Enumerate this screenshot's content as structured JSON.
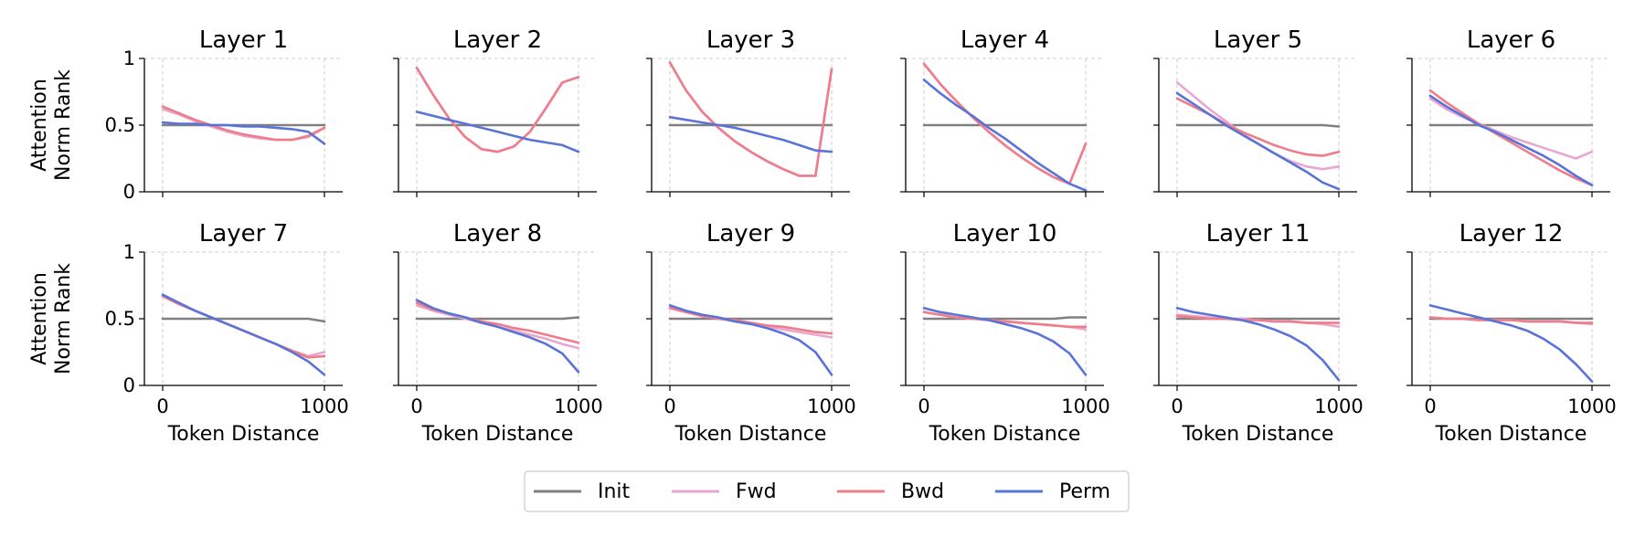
{
  "chart_data": {
    "type": "line",
    "layout": "2 rows x 6 columns of line charts with shared legend at bottom-center",
    "xlabel": "Token Distance",
    "ylabel": "Attention\nNorm Rank",
    "xticks": [
      0,
      1000
    ],
    "yticks": [
      0,
      0.5,
      1
    ],
    "xlim": [
      -50,
      1070
    ],
    "ylim": [
      0,
      1
    ],
    "grid": "dashed light-gray lines at x=0, x=1000 and y=1",
    "legend": {
      "placement": "bottom-center",
      "entries": [
        {
          "name": "Init",
          "color": "#808080"
        },
        {
          "name": "Fwd",
          "color": "#e8a7cf"
        },
        {
          "name": "Bwd",
          "color": "#ef7c8a"
        },
        {
          "name": "Perm",
          "color": "#5a73d8"
        }
      ]
    },
    "x": [
      0,
      100,
      200,
      300,
      400,
      500,
      600,
      700,
      800,
      900,
      1000
    ],
    "panels": [
      {
        "title": "Layer 1",
        "series": [
          {
            "name": "Init",
            "values": [
              0.5,
              0.5,
              0.5,
              0.5,
              0.5,
              0.5,
              0.5,
              0.5,
              0.5,
              0.5,
              0.5
            ]
          },
          {
            "name": "Fwd",
            "values": [
              0.62,
              0.58,
              0.53,
              0.49,
              0.45,
              0.42,
              0.4,
              0.39,
              0.39,
              0.41,
              0.48
            ]
          },
          {
            "name": "Bwd",
            "values": [
              0.64,
              0.59,
              0.54,
              0.5,
              0.46,
              0.43,
              0.41,
              0.39,
              0.39,
              0.42,
              0.48
            ]
          },
          {
            "name": "Perm",
            "values": [
              0.52,
              0.51,
              0.51,
              0.5,
              0.5,
              0.49,
              0.49,
              0.48,
              0.47,
              0.45,
              0.36
            ]
          }
        ]
      },
      {
        "title": "Layer 2",
        "series": [
          {
            "name": "Init",
            "values": [
              0.5,
              0.5,
              0.5,
              0.5,
              0.5,
              0.5,
              0.5,
              0.5,
              0.5,
              0.5,
              0.5
            ]
          },
          {
            "name": "Fwd",
            "values": [
              0.93,
              0.73,
              0.55,
              0.41,
              0.32,
              0.3,
              0.34,
              0.45,
              0.63,
              0.82,
              0.86
            ]
          },
          {
            "name": "Bwd",
            "values": [
              0.93,
              0.73,
              0.55,
              0.41,
              0.32,
              0.3,
              0.34,
              0.45,
              0.63,
              0.82,
              0.86
            ]
          },
          {
            "name": "Perm",
            "values": [
              0.6,
              0.57,
              0.54,
              0.51,
              0.48,
              0.45,
              0.42,
              0.39,
              0.37,
              0.35,
              0.3
            ]
          }
        ]
      },
      {
        "title": "Layer 3",
        "series": [
          {
            "name": "Init",
            "values": [
              0.5,
              0.5,
              0.5,
              0.5,
              0.5,
              0.5,
              0.5,
              0.5,
              0.5,
              0.5,
              0.5
            ]
          },
          {
            "name": "Fwd",
            "values": [
              0.97,
              0.76,
              0.6,
              0.48,
              0.38,
              0.3,
              0.23,
              0.17,
              0.12,
              0.12,
              0.92
            ]
          },
          {
            "name": "Bwd",
            "values": [
              0.97,
              0.76,
              0.6,
              0.48,
              0.38,
              0.3,
              0.23,
              0.17,
              0.12,
              0.12,
              0.92
            ]
          },
          {
            "name": "Perm",
            "values": [
              0.56,
              0.54,
              0.52,
              0.5,
              0.48,
              0.45,
              0.42,
              0.39,
              0.35,
              0.31,
              0.3
            ]
          }
        ]
      },
      {
        "title": "Layer 4",
        "series": [
          {
            "name": "Init",
            "values": [
              0.5,
              0.5,
              0.5,
              0.5,
              0.5,
              0.5,
              0.5,
              0.5,
              0.5,
              0.5,
              0.5
            ]
          },
          {
            "name": "Fwd",
            "values": [
              0.96,
              0.81,
              0.68,
              0.56,
              0.45,
              0.35,
              0.26,
              0.18,
              0.11,
              0.06,
              0.36
            ]
          },
          {
            "name": "Bwd",
            "values": [
              0.96,
              0.81,
              0.68,
              0.56,
              0.45,
              0.35,
              0.26,
              0.18,
              0.11,
              0.06,
              0.36
            ]
          },
          {
            "name": "Perm",
            "values": [
              0.84,
              0.74,
              0.65,
              0.57,
              0.48,
              0.4,
              0.31,
              0.22,
              0.14,
              0.06,
              0.01
            ]
          }
        ]
      },
      {
        "title": "Layer 5",
        "series": [
          {
            "name": "Init",
            "values": [
              0.5,
              0.5,
              0.5,
              0.5,
              0.5,
              0.5,
              0.5,
              0.5,
              0.5,
              0.5,
              0.49
            ]
          },
          {
            "name": "Fwd",
            "values": [
              0.82,
              0.72,
              0.62,
              0.53,
              0.44,
              0.36,
              0.29,
              0.23,
              0.19,
              0.17,
              0.19
            ]
          },
          {
            "name": "Bwd",
            "values": [
              0.7,
              0.64,
              0.58,
              0.51,
              0.45,
              0.4,
              0.35,
              0.31,
              0.28,
              0.27,
              0.3
            ]
          },
          {
            "name": "Perm",
            "values": [
              0.74,
              0.66,
              0.58,
              0.5,
              0.43,
              0.36,
              0.29,
              0.22,
              0.15,
              0.07,
              0.02
            ]
          }
        ]
      },
      {
        "title": "Layer 6",
        "series": [
          {
            "name": "Init",
            "values": [
              0.5,
              0.5,
              0.5,
              0.5,
              0.5,
              0.5,
              0.5,
              0.5,
              0.5,
              0.5,
              0.5
            ]
          },
          {
            "name": "Fwd",
            "values": [
              0.7,
              0.62,
              0.56,
              0.51,
              0.46,
              0.41,
              0.37,
              0.33,
              0.29,
              0.25,
              0.3
            ]
          },
          {
            "name": "Bwd",
            "values": [
              0.76,
              0.67,
              0.59,
              0.51,
              0.44,
              0.37,
              0.3,
              0.23,
              0.16,
              0.1,
              0.05
            ]
          },
          {
            "name": "Perm",
            "values": [
              0.72,
              0.64,
              0.57,
              0.5,
              0.45,
              0.39,
              0.33,
              0.27,
              0.2,
              0.12,
              0.05
            ]
          }
        ]
      },
      {
        "title": "Layer 7",
        "series": [
          {
            "name": "Init",
            "values": [
              0.5,
              0.5,
              0.5,
              0.5,
              0.5,
              0.5,
              0.5,
              0.5,
              0.5,
              0.5,
              0.48
            ]
          },
          {
            "name": "Fwd",
            "values": [
              0.67,
              0.61,
              0.56,
              0.51,
              0.46,
              0.41,
              0.36,
              0.31,
              0.26,
              0.22,
              0.25
            ]
          },
          {
            "name": "Bwd",
            "values": [
              0.67,
              0.61,
              0.56,
              0.51,
              0.46,
              0.41,
              0.36,
              0.31,
              0.26,
              0.21,
              0.22
            ]
          },
          {
            "name": "Perm",
            "values": [
              0.68,
              0.62,
              0.56,
              0.51,
              0.46,
              0.41,
              0.36,
              0.31,
              0.25,
              0.18,
              0.08
            ]
          }
        ]
      },
      {
        "title": "Layer 8",
        "series": [
          {
            "name": "Init",
            "values": [
              0.5,
              0.5,
              0.5,
              0.5,
              0.5,
              0.5,
              0.5,
              0.5,
              0.5,
              0.5,
              0.51
            ]
          },
          {
            "name": "Fwd",
            "values": [
              0.6,
              0.56,
              0.53,
              0.5,
              0.47,
              0.44,
              0.41,
              0.38,
              0.35,
              0.31,
              0.28
            ]
          },
          {
            "name": "Bwd",
            "values": [
              0.62,
              0.57,
              0.54,
              0.51,
              0.48,
              0.46,
              0.43,
              0.41,
              0.38,
              0.35,
              0.32
            ]
          },
          {
            "name": "Perm",
            "values": [
              0.64,
              0.58,
              0.54,
              0.51,
              0.47,
              0.44,
              0.4,
              0.36,
              0.31,
              0.24,
              0.1
            ]
          }
        ]
      },
      {
        "title": "Layer 9",
        "series": [
          {
            "name": "Init",
            "values": [
              0.5,
              0.5,
              0.5,
              0.5,
              0.5,
              0.5,
              0.5,
              0.5,
              0.5,
              0.5,
              0.5
            ]
          },
          {
            "name": "Fwd",
            "values": [
              0.58,
              0.55,
              0.52,
              0.5,
              0.48,
              0.46,
              0.44,
              0.42,
              0.4,
              0.38,
              0.36
            ]
          },
          {
            "name": "Bwd",
            "values": [
              0.58,
              0.55,
              0.52,
              0.5,
              0.49,
              0.47,
              0.45,
              0.44,
              0.42,
              0.4,
              0.39
            ]
          },
          {
            "name": "Perm",
            "values": [
              0.6,
              0.56,
              0.53,
              0.51,
              0.48,
              0.46,
              0.43,
              0.39,
              0.34,
              0.25,
              0.08
            ]
          }
        ]
      },
      {
        "title": "Layer 10",
        "series": [
          {
            "name": "Init",
            "values": [
              0.5,
              0.5,
              0.5,
              0.5,
              0.5,
              0.5,
              0.5,
              0.5,
              0.5,
              0.51,
              0.51
            ]
          },
          {
            "name": "Fwd",
            "values": [
              0.55,
              0.53,
              0.51,
              0.5,
              0.49,
              0.48,
              0.47,
              0.46,
              0.45,
              0.44,
              0.42
            ]
          },
          {
            "name": "Bwd",
            "values": [
              0.55,
              0.53,
              0.51,
              0.5,
              0.49,
              0.48,
              0.47,
              0.46,
              0.45,
              0.44,
              0.44
            ]
          },
          {
            "name": "Perm",
            "values": [
              0.58,
              0.55,
              0.53,
              0.51,
              0.49,
              0.46,
              0.43,
              0.39,
              0.33,
              0.24,
              0.08
            ]
          }
        ]
      },
      {
        "title": "Layer 11",
        "series": [
          {
            "name": "Init",
            "values": [
              0.5,
              0.5,
              0.5,
              0.5,
              0.5,
              0.5,
              0.5,
              0.5,
              0.5,
              0.5,
              0.5
            ]
          },
          {
            "name": "Fwd",
            "values": [
              0.53,
              0.52,
              0.51,
              0.5,
              0.5,
              0.49,
              0.48,
              0.48,
              0.47,
              0.46,
              0.44
            ]
          },
          {
            "name": "Bwd",
            "values": [
              0.52,
              0.51,
              0.5,
              0.5,
              0.49,
              0.49,
              0.48,
              0.48,
              0.47,
              0.47,
              0.47
            ]
          },
          {
            "name": "Perm",
            "values": [
              0.58,
              0.55,
              0.53,
              0.51,
              0.49,
              0.46,
              0.42,
              0.37,
              0.3,
              0.19,
              0.04
            ]
          }
        ]
      },
      {
        "title": "Layer 12",
        "series": [
          {
            "name": "Init",
            "values": [
              0.5,
              0.5,
              0.5,
              0.5,
              0.5,
              0.5,
              0.5,
              0.5,
              0.5,
              0.5,
              0.5
            ]
          },
          {
            "name": "Fwd",
            "values": [
              0.51,
              0.5,
              0.5,
              0.49,
              0.49,
              0.49,
              0.48,
              0.48,
              0.48,
              0.47,
              0.46
            ]
          },
          {
            "name": "Bwd",
            "values": [
              0.51,
              0.5,
              0.5,
              0.49,
              0.49,
              0.49,
              0.48,
              0.48,
              0.48,
              0.47,
              0.47
            ]
          },
          {
            "name": "Perm",
            "values": [
              0.6,
              0.57,
              0.54,
              0.51,
              0.48,
              0.45,
              0.41,
              0.35,
              0.27,
              0.16,
              0.03
            ]
          }
        ]
      }
    ]
  }
}
